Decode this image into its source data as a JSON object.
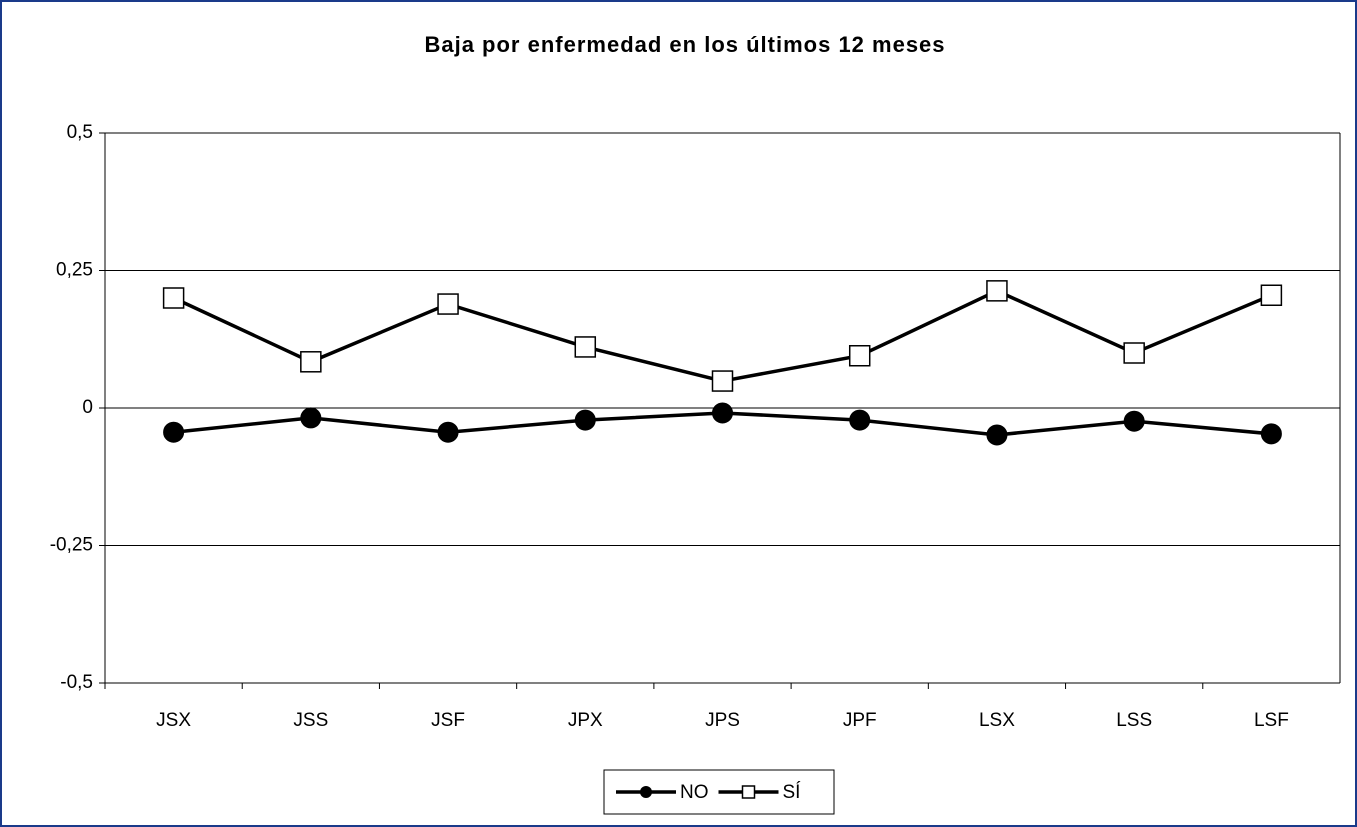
{
  "chart_data": {
    "type": "line",
    "title": "Baja por enfermedad en los últimos 12 meses",
    "categories": [
      "JSX",
      "JSS",
      "JSF",
      "JPX",
      "JPS",
      "JPF",
      "LSX",
      "LSS",
      "LSF"
    ],
    "series": [
      {
        "name": "NO",
        "color": "#000000",
        "marker": "circle",
        "values": [
          -0.044,
          -0.018,
          -0.044,
          -0.022,
          -0.009,
          -0.022,
          -0.049,
          -0.024,
          -0.047
        ]
      },
      {
        "name": "SÍ",
        "color": "#000000",
        "marker": "square",
        "values": [
          0.2,
          0.084,
          0.189,
          0.111,
          0.049,
          0.095,
          0.213,
          0.1,
          0.205
        ]
      }
    ],
    "ylim": [
      -0.5,
      0.5
    ],
    "yticks": [
      {
        "value": -0.5,
        "label": "-0,5"
      },
      {
        "value": -0.25,
        "label": "-0,25"
      },
      0,
      {
        "value": 0.25,
        "label": "0,25"
      },
      {
        "value": 0.5,
        "label": "0,5"
      }
    ],
    "grid": true,
    "legend": "bottom"
  }
}
